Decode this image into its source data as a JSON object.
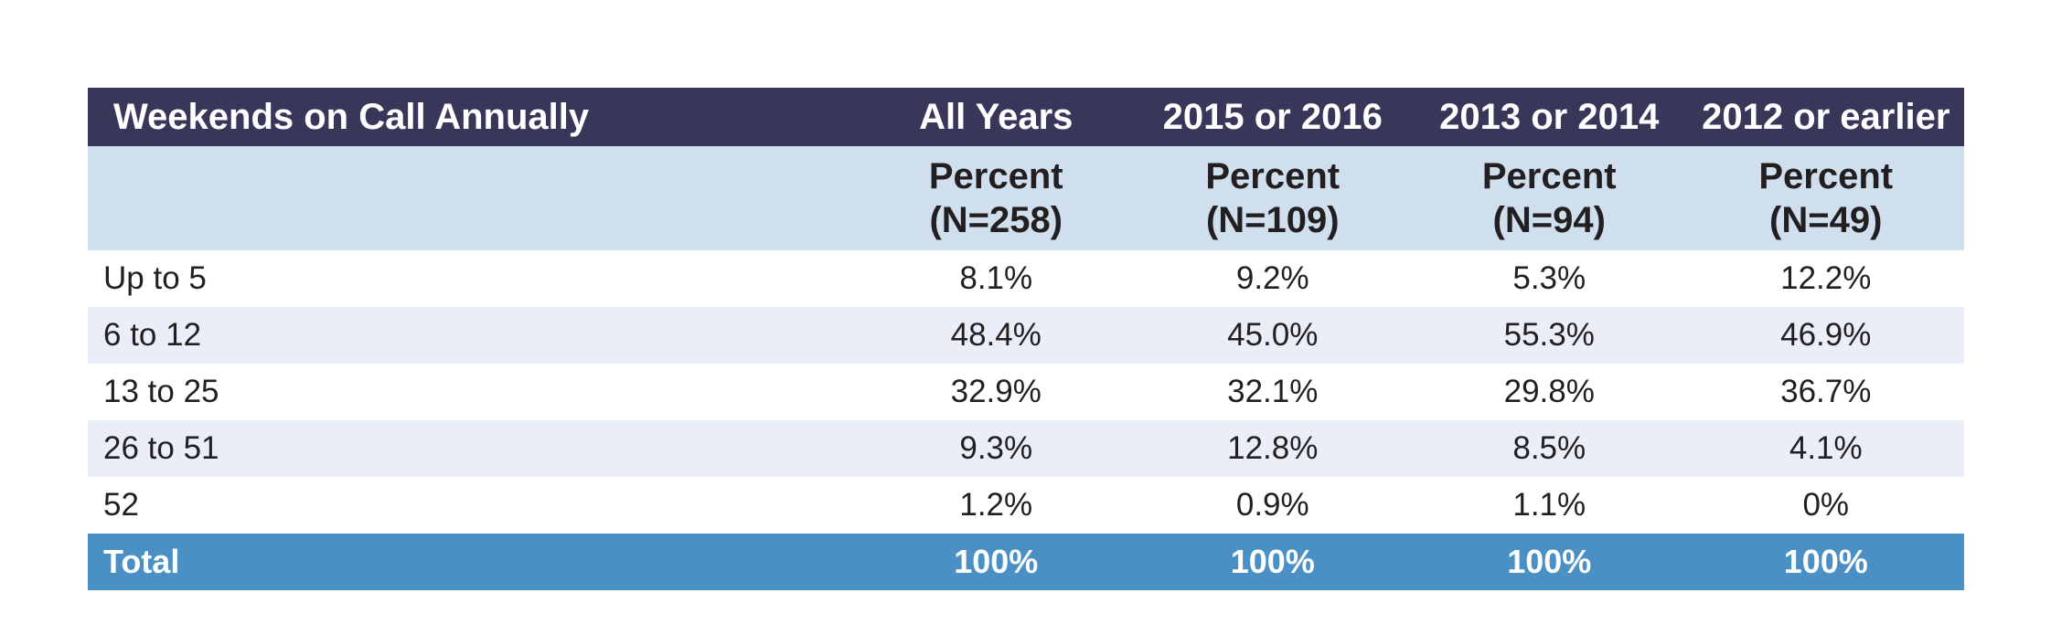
{
  "table": {
    "title": "Weekends on Call Annually",
    "columns": [
      "All Years",
      "2015 or 2016",
      "2013 or 2014",
      "2012 or earlier"
    ],
    "subheaders": [
      {
        "measure": "Percent",
        "n": "(N=258)"
      },
      {
        "measure": "Percent",
        "n": "(N=109)"
      },
      {
        "measure": "Percent",
        "n": "(N=94)"
      },
      {
        "measure": "Percent",
        "n": "(N=49)"
      }
    ],
    "rows": [
      {
        "label": "Up to 5",
        "values": [
          "8.1%",
          "9.2%",
          "5.3%",
          "12.2%"
        ]
      },
      {
        "label": "6 to 12",
        "values": [
          "48.4%",
          "45.0%",
          "55.3%",
          "46.9%"
        ]
      },
      {
        "label": "13 to 25",
        "values": [
          "32.9%",
          "32.1%",
          "29.8%",
          "36.7%"
        ]
      },
      {
        "label": "26 to 51",
        "values": [
          "9.3%",
          "12.8%",
          "8.5%",
          "4.1%"
        ]
      },
      {
        "label": "52",
        "values": [
          "1.2%",
          "0.9%",
          "1.1%",
          "0%"
        ]
      }
    ],
    "total": {
      "label": "Total",
      "values": [
        "100%",
        "100%",
        "100%",
        "100%"
      ]
    }
  },
  "colors": {
    "title_bar": "#383659",
    "subheader_bg": "#cfdfee",
    "alt_row_bg": "#eaeef8",
    "total_bar": "#4a90c4"
  }
}
